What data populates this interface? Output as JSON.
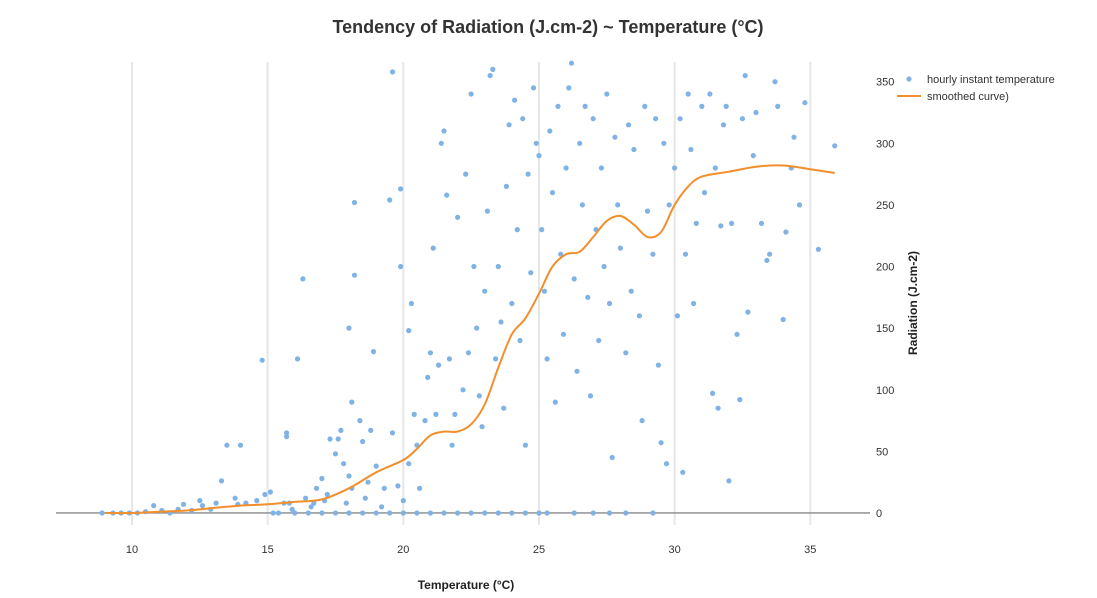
{
  "chart_data": {
    "type": "scatter",
    "title": "Tendency of Radiation (J.cm-2) ~ Temperature (°C)",
    "xlabel": "Temperature (°C)",
    "ylabel": "Radiation (J.cm-2)",
    "xlim": [
      7.2,
      37.2
    ],
    "ylim": [
      -26,
      366
    ],
    "x_ticks": [
      10,
      15,
      20,
      25,
      30,
      35
    ],
    "y_ticks": [
      0,
      50,
      100,
      150,
      200,
      250,
      300,
      350
    ],
    "grid": "vertical",
    "legend_position": "top-right",
    "colors": {
      "scatter": "#7fb2e5",
      "curve": "#f28e2b",
      "zero_line": "#888888",
      "grid": "#e6e6e6"
    },
    "series": [
      {
        "name": "hourly instant temperature",
        "kind": "scatter",
        "points": [
          [
            8.9,
            0
          ],
          [
            9.3,
            0
          ],
          [
            9.6,
            0
          ],
          [
            9.9,
            0
          ],
          [
            10.2,
            0
          ],
          [
            10.5,
            1
          ],
          [
            10.8,
            6
          ],
          [
            11.1,
            2
          ],
          [
            11.4,
            0
          ],
          [
            11.7,
            3
          ],
          [
            11.9,
            7
          ],
          [
            12.2,
            2
          ],
          [
            12.5,
            10
          ],
          [
            12.6,
            6
          ],
          [
            12.9,
            3
          ],
          [
            13.1,
            8
          ],
          [
            13.3,
            26
          ],
          [
            13.5,
            55
          ],
          [
            13.8,
            12
          ],
          [
            13.9,
            7
          ],
          [
            14.0,
            55
          ],
          [
            14.2,
            8
          ],
          [
            14.6,
            10
          ],
          [
            14.8,
            124
          ],
          [
            14.9,
            15
          ],
          [
            15.1,
            17
          ],
          [
            15.4,
            0
          ],
          [
            15.6,
            8
          ],
          [
            15.7,
            62
          ],
          [
            15.7,
            65
          ],
          [
            15.8,
            8
          ],
          [
            15.9,
            3
          ],
          [
            16.1,
            125
          ],
          [
            16.3,
            190
          ],
          [
            16.4,
            12
          ],
          [
            16.6,
            5
          ],
          [
            16.7,
            8
          ],
          [
            16.8,
            20
          ],
          [
            17.0,
            28
          ],
          [
            17.1,
            10
          ],
          [
            17.2,
            15
          ],
          [
            17.3,
            60
          ],
          [
            17.5,
            48
          ],
          [
            17.6,
            60
          ],
          [
            17.7,
            67
          ],
          [
            17.8,
            40
          ],
          [
            17.9,
            8
          ],
          [
            18.0,
            30
          ],
          [
            18.0,
            150
          ],
          [
            18.1,
            20
          ],
          [
            18.1,
            90
          ],
          [
            18.2,
            252
          ],
          [
            18.2,
            193
          ],
          [
            18.4,
            75
          ],
          [
            18.5,
            58
          ],
          [
            18.6,
            12
          ],
          [
            18.7,
            25
          ],
          [
            18.8,
            67
          ],
          [
            18.9,
            131
          ],
          [
            19.0,
            38
          ],
          [
            19.2,
            5
          ],
          [
            19.3,
            20
          ],
          [
            19.5,
            254
          ],
          [
            19.6,
            358
          ],
          [
            19.6,
            65
          ],
          [
            19.8,
            22
          ],
          [
            19.9,
            263
          ],
          [
            19.9,
            200
          ],
          [
            20.0,
            10
          ],
          [
            20.2,
            40
          ],
          [
            20.2,
            148
          ],
          [
            20.3,
            170
          ],
          [
            20.4,
            80
          ],
          [
            20.5,
            55
          ],
          [
            20.6,
            20
          ],
          [
            20.8,
            75
          ],
          [
            20.9,
            110
          ],
          [
            21.0,
            130
          ],
          [
            21.1,
            215
          ],
          [
            21.2,
            80
          ],
          [
            21.3,
            120
          ],
          [
            21.4,
            300
          ],
          [
            21.5,
            310
          ],
          [
            21.6,
            258
          ],
          [
            21.7,
            125
          ],
          [
            21.8,
            55
          ],
          [
            21.9,
            80
          ],
          [
            22.0,
            240
          ],
          [
            22.2,
            100
          ],
          [
            22.3,
            275
          ],
          [
            22.4,
            130
          ],
          [
            22.5,
            340
          ],
          [
            22.6,
            200
          ],
          [
            22.7,
            150
          ],
          [
            22.8,
            95
          ],
          [
            22.9,
            70
          ],
          [
            23.0,
            180
          ],
          [
            23.1,
            245
          ],
          [
            23.2,
            355
          ],
          [
            23.3,
            360
          ],
          [
            23.4,
            125
          ],
          [
            23.5,
            200
          ],
          [
            23.6,
            155
          ],
          [
            23.7,
            85
          ],
          [
            23.8,
            265
          ],
          [
            23.9,
            315
          ],
          [
            24.0,
            170
          ],
          [
            24.1,
            335
          ],
          [
            24.2,
            230
          ],
          [
            24.3,
            140
          ],
          [
            24.4,
            320
          ],
          [
            24.5,
            55
          ],
          [
            24.6,
            275
          ],
          [
            24.7,
            195
          ],
          [
            24.8,
            345
          ],
          [
            24.9,
            300
          ],
          [
            25.0,
            290
          ],
          [
            25.1,
            230
          ],
          [
            25.2,
            180
          ],
          [
            25.3,
            125
          ],
          [
            25.4,
            310
          ],
          [
            25.5,
            260
          ],
          [
            25.6,
            90
          ],
          [
            25.7,
            330
          ],
          [
            25.8,
            210
          ],
          [
            25.9,
            145
          ],
          [
            26.0,
            280
          ],
          [
            26.1,
            345
          ],
          [
            26.2,
            365
          ],
          [
            26.3,
            190
          ],
          [
            26.4,
            115
          ],
          [
            26.5,
            300
          ],
          [
            26.6,
            250
          ],
          [
            26.7,
            330
          ],
          [
            26.8,
            175
          ],
          [
            26.9,
            95
          ],
          [
            27.0,
            320
          ],
          [
            27.1,
            230
          ],
          [
            27.2,
            140
          ],
          [
            27.3,
            280
          ],
          [
            27.4,
            200
          ],
          [
            27.5,
            340
          ],
          [
            27.6,
            170
          ],
          [
            27.7,
            45
          ],
          [
            27.8,
            305
          ],
          [
            27.9,
            250
          ],
          [
            28.0,
            215
          ],
          [
            28.2,
            130
          ],
          [
            28.3,
            315
          ],
          [
            28.4,
            180
          ],
          [
            28.5,
            295
          ],
          [
            28.7,
            160
          ],
          [
            28.8,
            75
          ],
          [
            28.9,
            330
          ],
          [
            29.0,
            245
          ],
          [
            29.2,
            210
          ],
          [
            29.3,
            320
          ],
          [
            29.4,
            120
          ],
          [
            29.5,
            57
          ],
          [
            29.6,
            300
          ],
          [
            29.7,
            40
          ],
          [
            29.8,
            250
          ],
          [
            30.0,
            280
          ],
          [
            30.1,
            160
          ],
          [
            30.2,
            320
          ],
          [
            30.3,
            33
          ],
          [
            30.4,
            210
          ],
          [
            30.5,
            340
          ],
          [
            30.6,
            295
          ],
          [
            30.7,
            170
          ],
          [
            30.8,
            235
          ],
          [
            31.0,
            330
          ],
          [
            31.1,
            260
          ],
          [
            31.3,
            340
          ],
          [
            31.4,
            97
          ],
          [
            31.5,
            280
          ],
          [
            31.6,
            85
          ],
          [
            31.7,
            233
          ],
          [
            31.8,
            315
          ],
          [
            31.9,
            330
          ],
          [
            32.0,
            26
          ],
          [
            32.1,
            235
          ],
          [
            32.3,
            145
          ],
          [
            32.4,
            92
          ],
          [
            32.5,
            320
          ],
          [
            32.6,
            355
          ],
          [
            32.7,
            163
          ],
          [
            32.9,
            290
          ],
          [
            33.0,
            325
          ],
          [
            33.2,
            235
          ],
          [
            33.4,
            205
          ],
          [
            33.5,
            210
          ],
          [
            33.7,
            350
          ],
          [
            33.8,
            330
          ],
          [
            34.0,
            157
          ],
          [
            34.1,
            228
          ],
          [
            34.3,
            280
          ],
          [
            34.4,
            305
          ],
          [
            34.6,
            250
          ],
          [
            34.8,
            333
          ],
          [
            35.3,
            214
          ],
          [
            35.9,
            298
          ],
          [
            15.2,
            0
          ],
          [
            16.0,
            0
          ],
          [
            16.5,
            0
          ],
          [
            17.0,
            0
          ],
          [
            17.5,
            0
          ],
          [
            18.0,
            0
          ],
          [
            18.5,
            0
          ],
          [
            19.0,
            0
          ],
          [
            19.5,
            0
          ],
          [
            20.0,
            0
          ],
          [
            20.5,
            0
          ],
          [
            21.0,
            0
          ],
          [
            21.5,
            0
          ],
          [
            22.0,
            0
          ],
          [
            22.5,
            0
          ],
          [
            23.0,
            0
          ],
          [
            23.5,
            0
          ],
          [
            24.0,
            0
          ],
          [
            24.5,
            0
          ],
          [
            25.0,
            0
          ],
          [
            25.3,
            0
          ],
          [
            26.3,
            0
          ],
          [
            27.0,
            0
          ],
          [
            27.6,
            0
          ],
          [
            28.2,
            0
          ],
          [
            29.2,
            0
          ]
        ]
      },
      {
        "name": "smoothed curve)",
        "kind": "line",
        "x": [
          9.0,
          10.0,
          11.0,
          12.0,
          13.0,
          14.0,
          15.0,
          16.0,
          17.0,
          18.0,
          19.0,
          20.0,
          20.5,
          21.0,
          21.5,
          22.0,
          22.5,
          23.0,
          23.5,
          24.0,
          24.5,
          25.0,
          25.5,
          26.0,
          26.5,
          27.0,
          27.5,
          28.0,
          28.5,
          29.0,
          29.5,
          30.0,
          30.5,
          31.0,
          32.0,
          33.0,
          34.0,
          35.0,
          35.9
        ],
        "y": [
          0,
          0,
          1,
          2,
          4,
          6,
          7,
          9,
          11,
          20,
          33,
          43,
          52,
          63,
          66,
          66,
          72,
          88,
          118,
          145,
          158,
          178,
          200,
          210,
          212,
          224,
          237,
          241,
          234,
          224,
          228,
          250,
          265,
          273,
          277,
          281,
          282,
          279,
          276
        ]
      }
    ]
  }
}
